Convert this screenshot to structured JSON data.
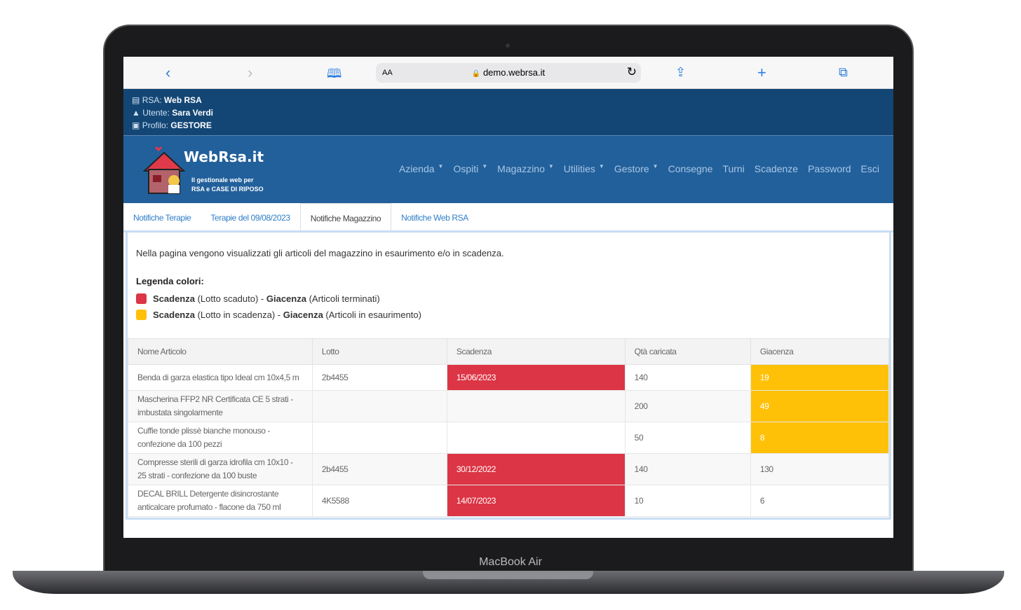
{
  "device": {
    "model": "MacBook Air"
  },
  "browser": {
    "url": "demo.webrsa.it",
    "aa": "AA",
    "icons": [
      "chevron-left",
      "chevron-right",
      "book",
      "lock",
      "reload",
      "share",
      "plus",
      "tabs"
    ]
  },
  "info": {
    "rsa_label": "RSA:",
    "rsa": "Web RSA",
    "user_label": "Utente:",
    "user": "Sara Verdi",
    "profile_label": "Profilo:",
    "profile": "GESTORE"
  },
  "brand": {
    "name": "WebRsa.it",
    "tagline1": "Il gestionale web per",
    "tagline2": "RSA e CASE DI RIPOSO"
  },
  "menu": [
    {
      "label": "Azienda",
      "dropdown": true
    },
    {
      "label": "Ospiti",
      "dropdown": true
    },
    {
      "label": "Magazzino",
      "dropdown": true
    },
    {
      "label": "Utilities",
      "dropdown": true
    },
    {
      "label": "Gestore",
      "dropdown": true
    },
    {
      "label": "Consegne"
    },
    {
      "label": "Turni"
    },
    {
      "label": "Scadenze"
    },
    {
      "label": "Password"
    },
    {
      "label": "Esci"
    }
  ],
  "tabs": [
    {
      "label": "Notifiche Terapie"
    },
    {
      "label": "Terapie del 09/08/2023"
    },
    {
      "label": "Notifiche Magazzino",
      "active": true
    },
    {
      "label": "Notifiche Web RSA"
    }
  ],
  "page": {
    "description": "Nella pagina vengono visualizzati gli articoli del magazzino in esaurimento e/o in scadenza.",
    "legend_title": "Legenda colori:",
    "legend": [
      {
        "color": "#dc3545",
        "a": "Scadenza",
        "b": " (Lotto scaduto) - ",
        "c": "Giacenza",
        "d": " (Articoli terminati)"
      },
      {
        "color": "#ffc107",
        "a": "Scadenza",
        "b": " (Lotto in scadenza) - ",
        "c": "Giacenza",
        "d": " (Articoli in esaurimento)"
      }
    ]
  },
  "table": {
    "headers": [
      "Nome Articolo",
      "Lotto",
      "Scadenza",
      "Qtà caricata",
      "Giacenza"
    ],
    "rows": [
      {
        "cells": [
          "Benda di garza elastica tipo Ideal cm 10x4,5 m",
          "2b4455",
          "15/06/2023",
          "140",
          "19"
        ],
        "scad": "red",
        "giac": "yel"
      },
      {
        "cells": [
          "Mascherina FFP2 NR Certificata CE 5 strati - imbustata singolarmente",
          "",
          "",
          "200",
          "49"
        ],
        "scad": "",
        "giac": "yel"
      },
      {
        "cells": [
          "Cuffie tonde plissè bianche monouso - confezione da 100 pezzi",
          "",
          "",
          "50",
          "8"
        ],
        "scad": "",
        "giac": "yel"
      },
      {
        "cells": [
          "Compresse sterili di garza idrofila cm 10x10 - 25 strati - confezione da 100 buste",
          "2b4455",
          "30/12/2022",
          "140",
          "130"
        ],
        "scad": "red",
        "giac": ""
      },
      {
        "cells": [
          "DECAL BRILL Detergente disincrostante anticalcare profumato - flacone da 750 ml",
          "4K5588",
          "14/07/2023",
          "10",
          "6"
        ],
        "scad": "red",
        "giac": ""
      }
    ]
  },
  "colors": {
    "expired": "#dc3545",
    "warning": "#ffc107",
    "header": "#134675",
    "nav": "#22609b"
  }
}
